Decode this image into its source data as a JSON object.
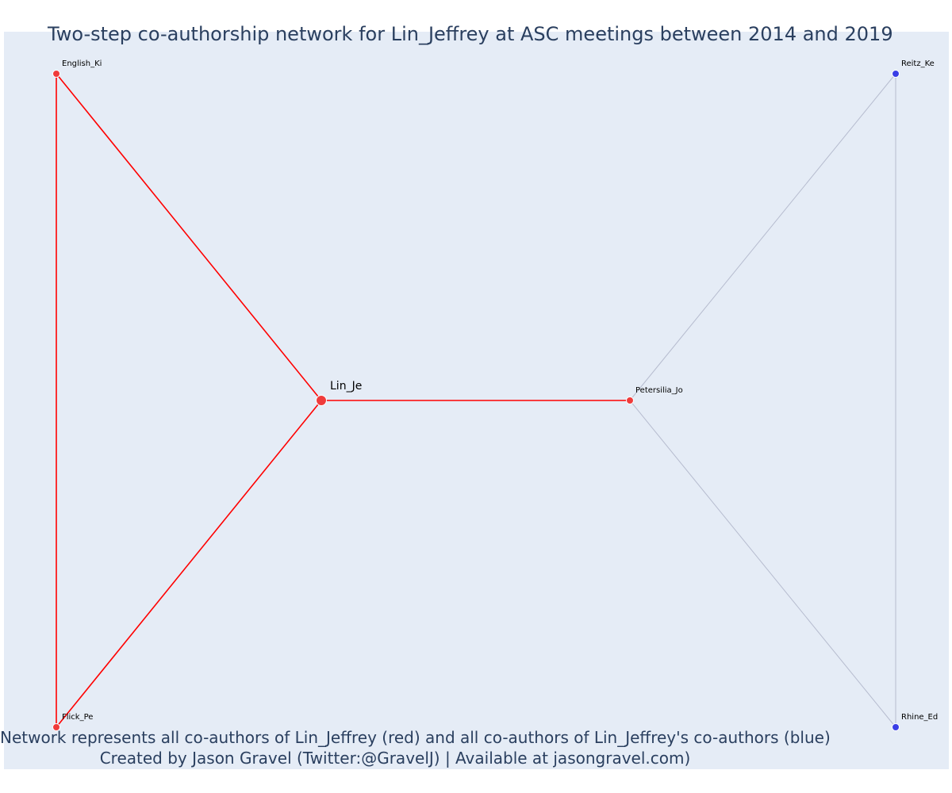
{
  "title": "Two-step co-authorship network for Lin_Jeffrey at ASC meetings between 2014 and 2019",
  "caption_line1": "Network represents all co-authors of Lin_Jeffrey (red) and all co-authors of Lin_Jeffrey's co-authors (blue)",
  "caption_line2": "Created by Jason Gravel (Twitter:@GravelJ) | Available at jasongravel.com)",
  "colors": {
    "background": "#e5ecf6",
    "coauthor": "#ef3b3b",
    "second_step": "#3a3ee6",
    "focal_edge": "#ff0000",
    "other_edge": "#b6bccf",
    "text": "#2a3f5f"
  },
  "focal_node": "Lin_Je",
  "nodes": [
    {
      "id": "Lin_Je",
      "label": "Lin_Je",
      "group": "focal"
    },
    {
      "id": "English_Ki",
      "label": "English_Ki",
      "group": "coauthor"
    },
    {
      "id": "Flick_Pe",
      "label": "Flick_Pe",
      "group": "coauthor"
    },
    {
      "id": "Petersilia_Jo",
      "label": "Petersilia_Jo",
      "group": "coauthor"
    },
    {
      "id": "Reitz_Ke",
      "label": "Reitz_Ke",
      "group": "second_step"
    },
    {
      "id": "Rhine_Ed",
      "label": "Rhine_Ed",
      "group": "second_step"
    }
  ],
  "edges": [
    {
      "source": "Lin_Je",
      "target": "English_Ki",
      "type": "focal"
    },
    {
      "source": "Lin_Je",
      "target": "Flick_Pe",
      "type": "focal"
    },
    {
      "source": "Lin_Je",
      "target": "Petersilia_Jo",
      "type": "focal"
    },
    {
      "source": "English_Ki",
      "target": "Flick_Pe",
      "type": "focal"
    },
    {
      "source": "Petersilia_Jo",
      "target": "Reitz_Ke",
      "type": "other"
    },
    {
      "source": "Petersilia_Jo",
      "target": "Rhine_Ed",
      "type": "other"
    },
    {
      "source": "Reitz_Ke",
      "target": "Rhine_Ed",
      "type": "other"
    }
  ]
}
